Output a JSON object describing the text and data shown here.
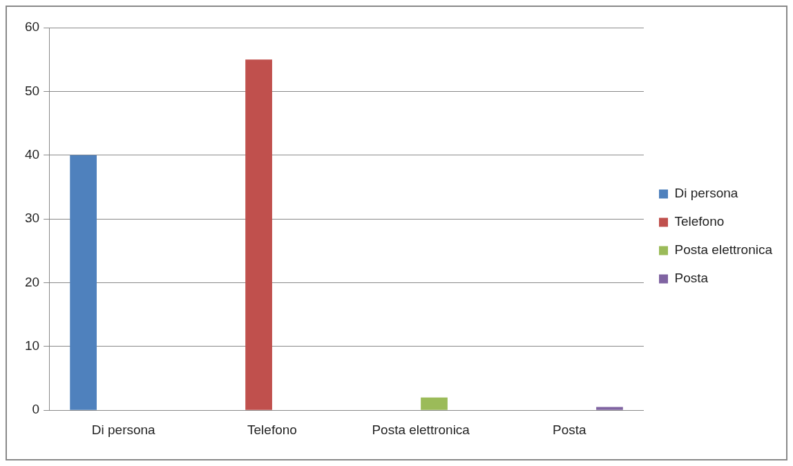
{
  "chart_data": {
    "type": "bar",
    "categories": [
      "Di persona",
      "Telefono",
      "Posta elettronica",
      "Posta"
    ],
    "series": [
      {
        "name": "Di persona",
        "color": "#4f81bd",
        "values": [
          40,
          0,
          0,
          0
        ]
      },
      {
        "name": "Telefono",
        "color": "#c0504d",
        "values": [
          0,
          55,
          0,
          0
        ]
      },
      {
        "name": "Posta elettronica",
        "color": "#9bbb59",
        "values": [
          0,
          0,
          2,
          0
        ]
      },
      {
        "name": "Posta",
        "color": "#8064a2",
        "values": [
          0,
          0,
          0,
          0.5
        ]
      }
    ],
    "ylim": [
      0,
      60
    ],
    "yticks": [
      0,
      10,
      20,
      30,
      40,
      50,
      60
    ],
    "grid": "y",
    "legend": "right"
  }
}
